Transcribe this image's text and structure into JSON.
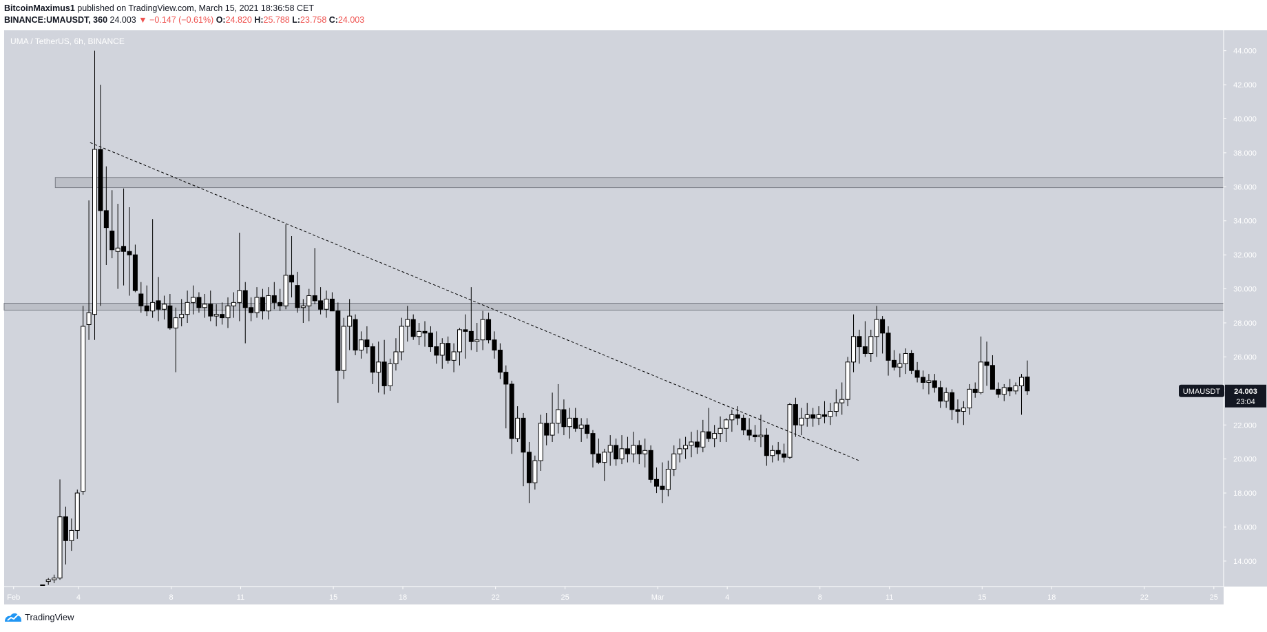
{
  "header": {
    "author": "BitcoinMaximus1",
    "published": "published on TradingView.com, March 15, 2021 18:36:58 CET"
  },
  "quote": {
    "symbol": "BINANCE:UMAUSDT, 360",
    "last": "24.003",
    "arrow": "▼",
    "change": "−0.147 (−0.61%)",
    "open_label": "O:",
    "open": "24.820",
    "high_label": "H:",
    "high": "25.788",
    "low_label": "L:",
    "low": "23.758",
    "close_label": "C:",
    "close": "24.003"
  },
  "footer": {
    "brand": "TradingView"
  },
  "colors": {
    "plot_bg": "#d1d4dc",
    "candle_up_fill": "#ffffff",
    "candle_down_fill": "#000000",
    "price_red": "#ef5350"
  },
  "chart_data": {
    "type": "candlestick",
    "title": "UMA / TetherUS, 6h, BINANCE",
    "currency": "USDT",
    "ylim": [
      12.5,
      45.2
    ],
    "yticks": [
      "14.000",
      "16.000",
      "18.000",
      "20.000",
      "22.000",
      "24.000",
      "26.000",
      "28.000",
      "30.000",
      "32.000",
      "34.000",
      "36.000",
      "38.000",
      "40.000",
      "42.000",
      "44.000"
    ],
    "xticks": [
      {
        "label": "Feb",
        "day": 0.2
      },
      {
        "label": "4",
        "day": 3
      },
      {
        "label": "8",
        "day": 7
      },
      {
        "label": "11",
        "day": 10
      },
      {
        "label": "15",
        "day": 14
      },
      {
        "label": "18",
        "day": 17
      },
      {
        "label": "22",
        "day": 21
      },
      {
        "label": "25",
        "day": 24
      },
      {
        "label": "Mar",
        "day": 28
      },
      {
        "label": "4",
        "day": 31
      },
      {
        "label": "8",
        "day": 35
      },
      {
        "label": "11",
        "day": 38
      },
      {
        "label": "15",
        "day": 42
      },
      {
        "label": "18",
        "day": 45
      },
      {
        "label": "22",
        "day": 49
      },
      {
        "label": "25",
        "day": 52
      }
    ],
    "last_price": {
      "label": "UMAUSDT",
      "value": "24.003",
      "countdown": "23:04",
      "y": 24.003
    },
    "resistance_zones": [
      [
        35.95,
        36.55
      ],
      [
        28.75,
        29.15
      ]
    ],
    "trendline": {
      "from": {
        "day": 3.5,
        "price": 38.6
      },
      "to": {
        "day": 36.7,
        "price": 19.9
      }
    },
    "candles": [
      [
        1.45,
        12.6,
        12.6,
        12.6,
        12.6
      ],
      [
        1.7,
        12.8,
        13.0,
        12.6,
        12.9
      ],
      [
        1.95,
        12.9,
        13.2,
        12.7,
        13.0
      ],
      [
        2.2,
        13.0,
        18.8,
        12.9,
        16.6
      ],
      [
        2.45,
        16.6,
        17.2,
        13.8,
        15.2
      ],
      [
        2.7,
        15.2,
        16.5,
        14.6,
        15.8
      ],
      [
        2.95,
        15.8,
        18.2,
        15.3,
        18.0
      ],
      [
        3.2,
        18.1,
        29.0,
        17.9,
        27.8
      ],
      [
        3.45,
        27.9,
        35.2,
        27.0,
        28.6
      ],
      [
        3.7,
        28.5,
        44.0,
        27.0,
        38.2
      ],
      [
        3.95,
        38.2,
        42.0,
        29.0,
        34.6
      ],
      [
        4.2,
        34.6,
        37.2,
        31.4,
        33.6
      ],
      [
        4.45,
        33.4,
        35.8,
        31.8,
        32.3
      ],
      [
        4.7,
        32.2,
        35.0,
        30.0,
        32.4
      ],
      [
        4.95,
        32.5,
        35.9,
        30.2,
        32.2
      ],
      [
        5.2,
        32.2,
        34.8,
        29.6,
        32.0
      ],
      [
        5.45,
        32.0,
        32.6,
        29.8,
        29.9
      ],
      [
        5.7,
        29.7,
        30.4,
        28.6,
        29.0
      ],
      [
        5.95,
        29.0,
        30.2,
        28.4,
        28.7
      ],
      [
        6.2,
        28.7,
        34.1,
        28.3,
        29.2
      ],
      [
        6.45,
        29.3,
        30.7,
        28.1,
        28.8
      ],
      [
        6.7,
        28.8,
        29.6,
        28.2,
        29.1
      ],
      [
        6.95,
        29.0,
        29.7,
        27.6,
        27.7
      ],
      [
        7.2,
        27.7,
        28.9,
        25.1,
        28.3
      ],
      [
        7.45,
        28.3,
        29.4,
        27.8,
        28.5
      ],
      [
        7.7,
        28.5,
        29.9,
        28.0,
        29.2
      ],
      [
        7.95,
        29.2,
        30.2,
        28.5,
        29.5
      ],
      [
        8.2,
        29.5,
        29.8,
        28.6,
        28.9
      ],
      [
        8.45,
        28.9,
        29.7,
        28.3,
        29.1
      ],
      [
        8.7,
        29.1,
        29.9,
        28.1,
        28.4
      ],
      [
        8.95,
        28.4,
        29.1,
        27.8,
        28.5
      ],
      [
        9.2,
        28.5,
        29.2,
        27.9,
        28.3
      ],
      [
        9.45,
        28.3,
        29.5,
        27.7,
        29.0
      ],
      [
        9.7,
        29.0,
        29.8,
        28.3,
        29.2
      ],
      [
        9.95,
        29.2,
        33.3,
        28.1,
        29.9
      ],
      [
        10.2,
        29.9,
        30.4,
        26.8,
        28.9
      ],
      [
        10.45,
        28.9,
        29.5,
        28.1,
        28.6
      ],
      [
        10.7,
        28.6,
        30.1,
        28.3,
        29.5
      ],
      [
        10.95,
        29.5,
        30.0,
        28.2,
        28.7
      ],
      [
        11.2,
        28.7,
        30.1,
        28.2,
        29.6
      ],
      [
        11.45,
        29.6,
        30.4,
        28.8,
        29.2
      ],
      [
        11.7,
        29.2,
        30.0,
        28.7,
        29.0
      ],
      [
        11.95,
        29.0,
        33.8,
        28.8,
        30.8
      ],
      [
        12.2,
        30.8,
        33.1,
        29.5,
        30.4
      ],
      [
        12.45,
        30.2,
        31.0,
        28.6,
        28.9
      ],
      [
        12.7,
        28.9,
        29.4,
        28.0,
        29.0
      ],
      [
        12.95,
        29.0,
        30.0,
        28.1,
        29.6
      ],
      [
        13.2,
        29.6,
        32.4,
        29.1,
        29.3
      ],
      [
        13.45,
        29.3,
        30.1,
        28.5,
        28.8
      ],
      [
        13.7,
        28.8,
        29.9,
        28.3,
        29.4
      ],
      [
        13.95,
        29.4,
        29.8,
        28.7,
        28.7
      ],
      [
        14.2,
        28.7,
        29.2,
        23.3,
        25.2
      ],
      [
        14.45,
        25.2,
        28.3,
        24.7,
        27.8
      ],
      [
        14.7,
        27.8,
        29.4,
        26.4,
        28.4
      ],
      [
        14.95,
        28.2,
        28.5,
        26.1,
        26.4
      ],
      [
        15.2,
        26.4,
        27.5,
        25.9,
        27.0
      ],
      [
        15.45,
        27.0,
        27.8,
        26.2,
        26.6
      ],
      [
        15.7,
        26.6,
        26.8,
        24.4,
        25.1
      ],
      [
        15.95,
        25.1,
        26.9,
        23.9,
        25.7
      ],
      [
        16.2,
        25.7,
        27.0,
        23.8,
        24.3
      ],
      [
        16.45,
        24.3,
        25.9,
        24.0,
        25.6
      ],
      [
        16.7,
        25.6,
        27.1,
        25.2,
        26.3
      ],
      [
        16.95,
        26.3,
        28.3,
        25.8,
        27.8
      ],
      [
        17.2,
        27.8,
        29.0,
        26.9,
        28.2
      ],
      [
        17.45,
        28.2,
        28.5,
        27.0,
        27.2
      ],
      [
        17.7,
        27.2,
        28.0,
        26.7,
        27.5
      ],
      [
        17.95,
        27.5,
        28.1,
        26.6,
        27.4
      ],
      [
        18.2,
        27.4,
        27.8,
        26.3,
        26.6
      ],
      [
        18.45,
        26.6,
        27.5,
        25.6,
        26.1
      ],
      [
        18.7,
        26.1,
        27.1,
        25.3,
        26.8
      ],
      [
        18.95,
        26.8,
        27.2,
        25.6,
        25.8
      ],
      [
        19.2,
        25.8,
        26.8,
        25.1,
        26.3
      ],
      [
        19.45,
        26.3,
        27.7,
        25.5,
        27.6
      ],
      [
        19.7,
        27.6,
        28.5,
        25.9,
        27.5
      ],
      [
        19.95,
        27.5,
        30.1,
        26.4,
        26.9
      ],
      [
        20.2,
        26.9,
        28.0,
        26.3,
        27.0
      ],
      [
        20.45,
        27.0,
        28.7,
        26.4,
        28.2
      ],
      [
        20.7,
        28.2,
        28.6,
        26.8,
        27.0
      ],
      [
        20.95,
        27.0,
        27.5,
        25.9,
        26.4
      ],
      [
        21.2,
        26.4,
        26.8,
        24.7,
        25.1
      ],
      [
        21.45,
        25.1,
        25.5,
        21.8,
        24.4
      ],
      [
        21.7,
        24.4,
        24.6,
        20.3,
        21.2
      ],
      [
        21.95,
        21.2,
        23.1,
        21.0,
        22.4
      ],
      [
        22.2,
        22.4,
        22.7,
        18.4,
        20.4
      ],
      [
        22.45,
        20.4,
        21.0,
        17.4,
        18.6
      ],
      [
        22.7,
        18.6,
        20.2,
        18.2,
        19.9
      ],
      [
        22.95,
        19.9,
        22.6,
        19.3,
        22.1
      ],
      [
        23.2,
        22.1,
        22.7,
        20.8,
        21.4
      ],
      [
        23.45,
        21.4,
        23.9,
        21.0,
        22.1
      ],
      [
        23.7,
        22.1,
        24.4,
        21.5,
        22.9
      ],
      [
        23.95,
        22.9,
        23.5,
        21.4,
        21.9
      ],
      [
        24.2,
        21.9,
        23.0,
        21.2,
        22.4
      ],
      [
        24.45,
        22.4,
        23.0,
        21.6,
        21.8
      ],
      [
        24.7,
        21.8,
        22.4,
        21.0,
        22.0
      ],
      [
        24.95,
        22.0,
        22.4,
        21.2,
        21.5
      ],
      [
        25.2,
        21.5,
        21.7,
        19.5,
        20.3
      ],
      [
        25.45,
        20.3,
        21.2,
        19.7,
        19.8
      ],
      [
        25.7,
        19.8,
        20.6,
        18.7,
        20.4
      ],
      [
        25.95,
        20.4,
        21.4,
        19.6,
        20.8
      ],
      [
        26.2,
        20.8,
        21.2,
        19.6,
        20.0
      ],
      [
        26.45,
        20.0,
        21.4,
        19.7,
        20.6
      ],
      [
        26.7,
        20.6,
        21.3,
        19.8,
        20.3
      ],
      [
        26.95,
        20.3,
        21.6,
        19.8,
        20.8
      ],
      [
        27.2,
        20.8,
        21.1,
        19.7,
        20.3
      ],
      [
        27.45,
        20.3,
        21.2,
        19.5,
        20.5
      ],
      [
        27.7,
        20.5,
        20.8,
        18.6,
        18.8
      ],
      [
        27.95,
        18.8,
        19.5,
        18.0,
        18.4
      ],
      [
        28.2,
        18.4,
        19.8,
        17.4,
        18.2
      ],
      [
        28.45,
        18.2,
        19.9,
        17.8,
        19.4
      ],
      [
        28.7,
        19.4,
        20.8,
        19.0,
        20.3
      ],
      [
        28.95,
        20.3,
        21.2,
        19.8,
        20.6
      ],
      [
        29.2,
        20.6,
        21.3,
        20.0,
        20.8
      ],
      [
        29.45,
        20.8,
        21.6,
        20.1,
        21.0
      ],
      [
        29.7,
        21.0,
        21.7,
        20.3,
        20.7
      ],
      [
        29.95,
        20.7,
        22.3,
        20.4,
        21.6
      ],
      [
        30.2,
        21.6,
        23.0,
        21.0,
        21.2
      ],
      [
        30.45,
        21.2,
        22.0,
        20.7,
        21.5
      ],
      [
        30.7,
        21.5,
        22.5,
        21.0,
        21.8
      ],
      [
        30.95,
        21.8,
        22.4,
        21.0,
        22.3
      ],
      [
        31.2,
        22.3,
        22.9,
        21.6,
        22.6
      ],
      [
        31.45,
        22.6,
        23.1,
        22.0,
        22.4
      ],
      [
        31.7,
        22.4,
        22.6,
        21.4,
        21.7
      ],
      [
        31.95,
        21.7,
        22.4,
        21.1,
        21.4
      ],
      [
        32.2,
        21.4,
        22.0,
        21.0,
        21.3
      ],
      [
        32.45,
        21.3,
        22.6,
        20.7,
        21.4
      ],
      [
        32.7,
        21.4,
        21.8,
        19.6,
        20.2
      ],
      [
        32.95,
        20.2,
        20.8,
        19.8,
        20.5
      ],
      [
        33.2,
        20.5,
        21.0,
        19.9,
        20.3
      ],
      [
        33.45,
        20.3,
        20.9,
        19.8,
        20.1
      ],
      [
        33.7,
        20.1,
        23.3,
        20.0,
        23.2
      ],
      [
        33.95,
        23.2,
        23.6,
        21.3,
        22.0
      ],
      [
        34.2,
        22.0,
        23.0,
        21.4,
        22.4
      ],
      [
        34.45,
        22.4,
        23.3,
        21.9,
        22.6
      ],
      [
        34.7,
        22.6,
        23.0,
        21.9,
        22.4
      ],
      [
        34.95,
        22.4,
        23.1,
        22.0,
        22.6
      ],
      [
        35.2,
        22.6,
        23.4,
        22.1,
        22.5
      ],
      [
        35.45,
        22.5,
        23.3,
        22.0,
        22.8
      ],
      [
        35.7,
        22.8,
        24.1,
        22.5,
        23.3
      ],
      [
        35.95,
        23.3,
        24.5,
        22.6,
        23.5
      ],
      [
        36.2,
        23.5,
        26.0,
        23.1,
        25.7
      ],
      [
        36.45,
        25.7,
        28.5,
        25.1,
        27.2
      ],
      [
        36.7,
        27.2,
        27.6,
        25.6,
        26.6
      ],
      [
        36.95,
        26.6,
        28.1,
        26.0,
        26.2
      ],
      [
        37.2,
        26.2,
        27.6,
        25.7,
        27.2
      ],
      [
        37.45,
        27.2,
        29.0,
        26.0,
        28.2
      ],
      [
        37.7,
        28.2,
        28.4,
        26.2,
        27.4
      ],
      [
        37.95,
        27.4,
        27.8,
        24.9,
        25.8
      ],
      [
        38.2,
        25.8,
        26.4,
        25.2,
        25.4
      ],
      [
        38.45,
        25.4,
        26.2,
        24.8,
        25.6
      ],
      [
        38.7,
        25.6,
        26.5,
        25.0,
        26.2
      ],
      [
        38.95,
        26.2,
        26.4,
        25.0,
        25.2
      ],
      [
        39.2,
        25.2,
        25.7,
        24.5,
        24.8
      ],
      [
        39.45,
        24.8,
        25.2,
        24.1,
        24.5
      ],
      [
        39.7,
        24.5,
        25.0,
        23.8,
        24.6
      ],
      [
        39.95,
        24.6,
        25.0,
        23.9,
        24.2
      ],
      [
        40.2,
        24.2,
        24.6,
        23.0,
        23.4
      ],
      [
        40.45,
        23.4,
        24.2,
        23.0,
        23.9
      ],
      [
        40.7,
        23.9,
        24.1,
        22.3,
        22.9
      ],
      [
        40.95,
        22.9,
        23.5,
        22.1,
        22.8
      ],
      [
        41.2,
        22.8,
        23.4,
        22.0,
        23.0
      ],
      [
        41.45,
        23.0,
        24.4,
        22.6,
        24.1
      ],
      [
        41.7,
        24.1,
        24.5,
        23.6,
        23.9
      ],
      [
        41.95,
        23.9,
        27.2,
        23.8,
        25.7
      ],
      [
        42.2,
        25.7,
        26.9,
        24.3,
        25.5
      ],
      [
        42.45,
        25.5,
        26.1,
        24.2,
        24.1
      ],
      [
        42.7,
        24.1,
        24.5,
        23.6,
        23.8
      ],
      [
        42.95,
        23.8,
        24.4,
        23.4,
        24.2
      ],
      [
        43.2,
        24.2,
        24.7,
        23.7,
        24.0
      ],
      [
        43.45,
        24.0,
        24.5,
        23.8,
        24.3
      ],
      [
        43.7,
        24.3,
        25.0,
        22.6,
        24.8
      ],
      [
        43.95,
        24.82,
        25.788,
        23.758,
        24.003
      ]
    ]
  }
}
